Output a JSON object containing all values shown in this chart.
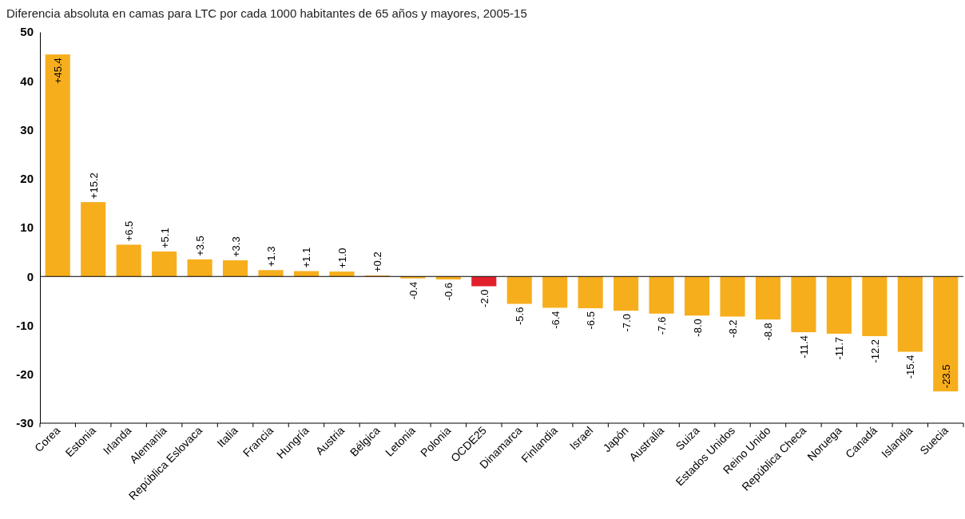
{
  "chart_data": {
    "type": "bar",
    "title": "Diferencia absoluta en camas para LTC por cada 1000 habitantes de 65 años y mayores, 2005-15",
    "categories": [
      "Corea",
      "Estonia",
      "Irlanda",
      "Alemania",
      "República Eslovaca",
      "Italia",
      "Francia",
      "Hungría",
      "Austria",
      "Bélgica",
      "Letonia",
      "Polonia",
      "OCDE25",
      "Dinamarca",
      "Finlandia",
      "Israel",
      "Japón",
      "Australia",
      "Suiza",
      "Estados Unidos",
      "Reino Unido",
      "República Checa",
      "Noruega",
      "Canadá",
      "Islandia",
      "Suecia"
    ],
    "values": [
      45.4,
      15.2,
      6.5,
      5.1,
      3.5,
      3.3,
      1.3,
      1.1,
      1.0,
      0.2,
      -0.4,
      -0.6,
      -2.0,
      -5.6,
      -6.4,
      -6.5,
      -7.0,
      -7.6,
      -8.0,
      -8.2,
      -8.8,
      -11.4,
      -11.7,
      -12.2,
      -15.4,
      -23.5
    ],
    "value_labels": [
      "+45.4",
      "+15.2",
      "+6.5",
      "+5.1",
      "+3.5",
      "+3.3",
      "+1.3",
      "+1.1",
      "+1.0",
      "+0.2",
      "-0.4",
      "-0.6",
      "-2.0",
      "-5.6",
      "-6.4",
      "-6.5",
      "-7.0",
      "-7.6",
      "-8.0",
      "-8.2",
      "-8.8",
      "-11.4",
      "-11.7",
      "-12.2",
      "-15.4",
      "-23.5"
    ],
    "colors": [
      "#f7ae1d",
      "#f7ae1d",
      "#f7ae1d",
      "#f7ae1d",
      "#f7ae1d",
      "#f7ae1d",
      "#f7ae1d",
      "#f7ae1d",
      "#f7ae1d",
      "#f7ae1d",
      "#f7ae1d",
      "#f7ae1d",
      "#e2202c",
      "#f7ae1d",
      "#f7ae1d",
      "#f7ae1d",
      "#f7ae1d",
      "#f7ae1d",
      "#f7ae1d",
      "#f7ae1d",
      "#f7ae1d",
      "#f7ae1d",
      "#f7ae1d",
      "#f7ae1d",
      "#f7ae1d",
      "#f7ae1d"
    ],
    "ylim": [
      -30,
      50
    ],
    "yticks": [
      -30,
      -20,
      -10,
      0,
      10,
      20,
      30,
      40,
      50
    ]
  }
}
